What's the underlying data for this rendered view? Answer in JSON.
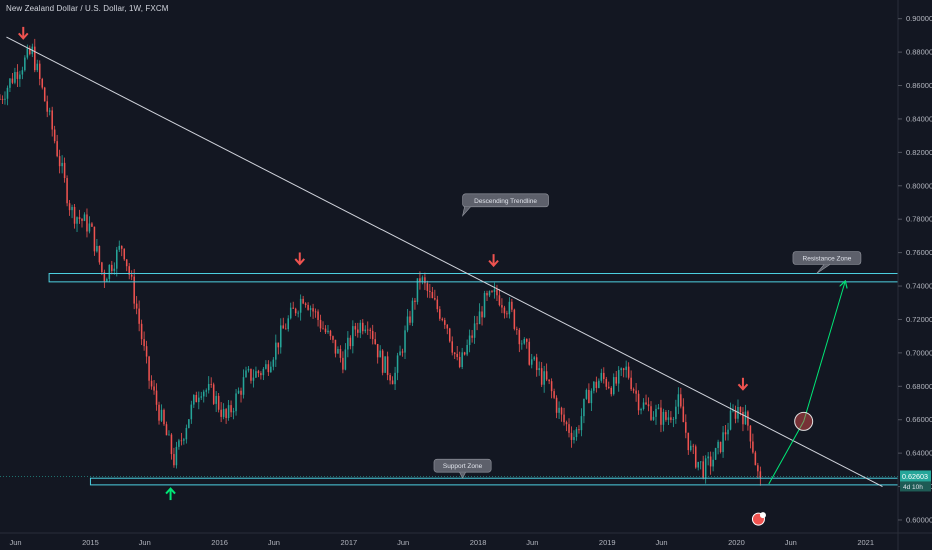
{
  "chart_data": {
    "type": "candlestick",
    "title": "New Zealand Dollar / U.S. Dollar, 1W, FXCM",
    "xlabel": "",
    "ylabel": "",
    "x_range": [
      2014.3,
      2021.25
    ],
    "ylim": [
      0.594,
      0.904
    ],
    "y_ticks": [
      0.6,
      0.62,
      0.64,
      0.66,
      0.68,
      0.7,
      0.72,
      0.74,
      0.76,
      0.78,
      0.8,
      0.82,
      0.84,
      0.86,
      0.88,
      0.9
    ],
    "y_tick_labels": [
      "0.60000",
      "0.62000",
      "0.64000",
      "0.66000",
      "0.68000",
      "0.70000",
      "0.72000",
      "0.74000",
      "0.76000",
      "0.78000",
      "0.80000",
      "0.82000",
      "0.84000",
      "0.86000",
      "0.88000",
      "0.90000"
    ],
    "x_ticks": [
      {
        "x": 2014.42,
        "label": "Jun"
      },
      {
        "x": 2015.0,
        "label": "2015"
      },
      {
        "x": 2015.42,
        "label": "Jun"
      },
      {
        "x": 2016.0,
        "label": "2016"
      },
      {
        "x": 2016.42,
        "label": "Jun"
      },
      {
        "x": 2017.0,
        "label": "2017"
      },
      {
        "x": 2017.42,
        "label": "Jun"
      },
      {
        "x": 2018.0,
        "label": "2018"
      },
      {
        "x": 2018.42,
        "label": "Jun"
      },
      {
        "x": 2019.0,
        "label": "2019"
      },
      {
        "x": 2019.42,
        "label": "Jun"
      },
      {
        "x": 2020.0,
        "label": "2020"
      },
      {
        "x": 2020.42,
        "label": "Jun"
      },
      {
        "x": 2021.0,
        "label": "2021"
      }
    ],
    "price_path": [
      [
        2014.3,
        0.852
      ],
      [
        2014.42,
        0.868
      ],
      [
        2014.55,
        0.88
      ],
      [
        2014.7,
        0.835
      ],
      [
        2014.85,
        0.785
      ],
      [
        2015.0,
        0.775
      ],
      [
        2015.1,
        0.745
      ],
      [
        2015.25,
        0.765
      ],
      [
        2015.35,
        0.73
      ],
      [
        2015.45,
        0.685
      ],
      [
        2015.55,
        0.66
      ],
      [
        2015.65,
        0.635
      ],
      [
        2015.75,
        0.66
      ],
      [
        2015.85,
        0.68
      ],
      [
        2015.95,
        0.675
      ],
      [
        2016.05,
        0.66
      ],
      [
        2016.2,
        0.685
      ],
      [
        2016.35,
        0.69
      ],
      [
        2016.5,
        0.715
      ],
      [
        2016.65,
        0.735
      ],
      [
        2016.8,
        0.715
      ],
      [
        2016.95,
        0.695
      ],
      [
        2017.05,
        0.715
      ],
      [
        2017.15,
        0.72
      ],
      [
        2017.25,
        0.695
      ],
      [
        2017.35,
        0.685
      ],
      [
        2017.45,
        0.715
      ],
      [
        2017.55,
        0.745
      ],
      [
        2017.65,
        0.73
      ],
      [
        2017.75,
        0.72
      ],
      [
        2017.85,
        0.69
      ],
      [
        2017.95,
        0.71
      ],
      [
        2018.05,
        0.73
      ],
      [
        2018.15,
        0.735
      ],
      [
        2018.25,
        0.725
      ],
      [
        2018.35,
        0.705
      ],
      [
        2018.45,
        0.69
      ],
      [
        2018.55,
        0.68
      ],
      [
        2018.65,
        0.66
      ],
      [
        2018.75,
        0.65
      ],
      [
        2018.85,
        0.675
      ],
      [
        2018.95,
        0.685
      ],
      [
        2019.05,
        0.68
      ],
      [
        2019.15,
        0.69
      ],
      [
        2019.25,
        0.67
      ],
      [
        2019.35,
        0.665
      ],
      [
        2019.45,
        0.66
      ],
      [
        2019.55,
        0.67
      ],
      [
        2019.65,
        0.64
      ],
      [
        2019.75,
        0.63
      ],
      [
        2019.85,
        0.64
      ],
      [
        2019.95,
        0.66
      ],
      [
        2020.02,
        0.668
      ],
      [
        2020.1,
        0.655
      ],
      [
        2020.17,
        0.625
      ],
      [
        2020.2,
        0.618
      ]
    ],
    "last_price": "0.62603",
    "countdown": "4d 10h",
    "annotations": [
      {
        "text": "Descending Trendline",
        "x": 2017.88,
        "y": 0.782
      },
      {
        "text": "Resistance Zone",
        "x": 2021.6,
        "y": 0.755
      },
      {
        "text": "Support Zone",
        "x": 2017.7,
        "y": 0.629
      }
    ],
    "trendline": {
      "from": [
        2014.35,
        0.889
      ],
      "to": [
        2021.13,
        0.62
      ]
    },
    "resistance_zone": {
      "x_from": 2014.68,
      "x_to": 2021.25,
      "y_low": 0.7425,
      "y_high": 0.7475
    },
    "support_zone": {
      "x_from": 2015.0,
      "x_to": 2021.25,
      "y_low": 0.621,
      "y_high": 0.625
    },
    "sell_arrows": [
      {
        "x": 2014.48,
        "y": 0.8915
      },
      {
        "x": 2016.62,
        "y": 0.7565
      },
      {
        "x": 2018.12,
        "y": 0.7555
      },
      {
        "x": 2020.05,
        "y": 0.6815
      }
    ],
    "buy_arrows": [
      {
        "x": 2015.62,
        "y": 0.6155
      }
    ],
    "projection": {
      "points": [
        [
          2020.25,
          0.6215
        ],
        [
          2020.52,
          0.659
        ],
        [
          2020.84,
          0.7425
        ]
      ]
    },
    "projection_circle": {
      "x": 2020.52,
      "y": 0.659
    },
    "colors": {
      "background": "#131722",
      "up": "#26a69a",
      "down": "#ef5350",
      "zone": "#4dd0e1",
      "trendline": "#d1d4dc",
      "projection": "#00e676",
      "price_label": "#26a69a",
      "grid": "#1e222d",
      "axis_text": "#b2b5be"
    },
    "legend": "none",
    "grid": false
  }
}
